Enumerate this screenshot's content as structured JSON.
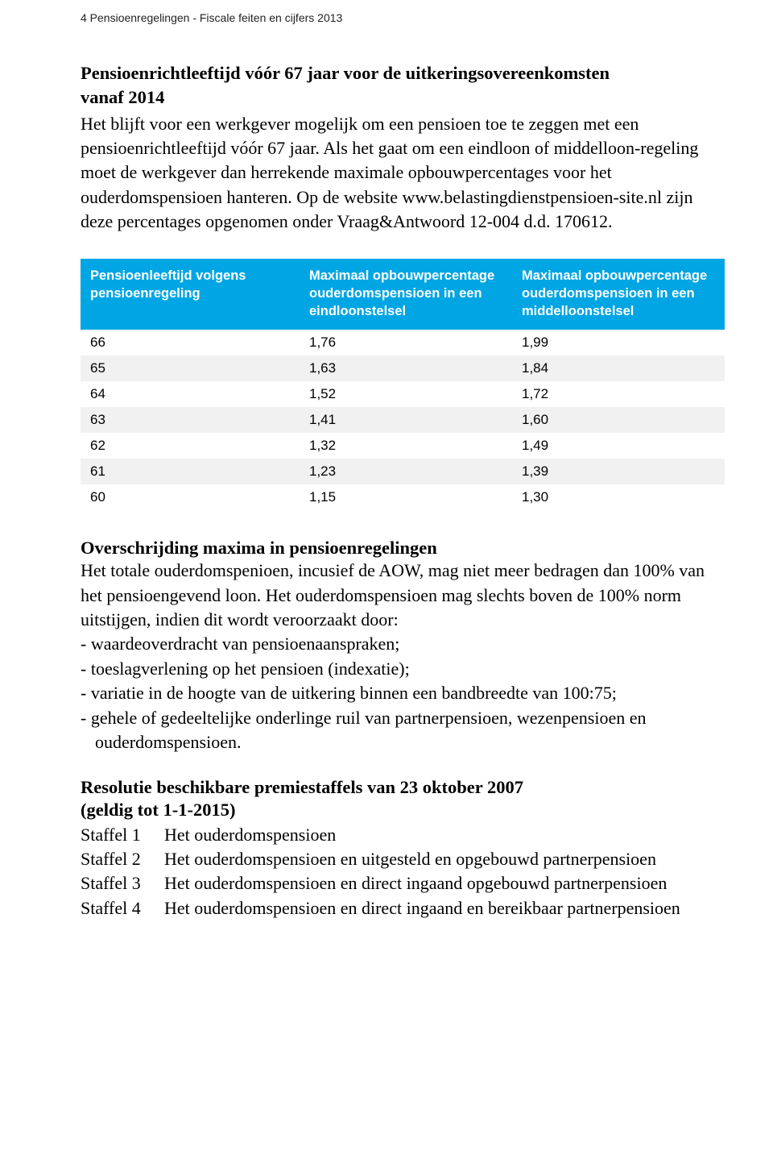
{
  "header": {
    "running": "4  Pensioenregelingen - Fiscale feiten en cijfers 2013"
  },
  "section1": {
    "title_line1": "Pensioenrichtleeftijd vóór 67 jaar voor de  uitkeringsovereenkomsten",
    "title_line2": "vanaf 2014",
    "para": "Het blijft voor een werkgever mogelijk om een pensioen toe te zeggen met een pensioenrichtleeftijd vóór 67 jaar. Als het gaat om een eindloon of middelloon-regeling moet de werkgever dan herrekende maximale opbouwpercentages voor het ouderdomspensioen hanteren. Op de website www.belastingdienstpensioen-site.nl zijn deze percentages opgenomen onder Vraag&Antwoord 12-004 d.d. 170612."
  },
  "table": {
    "columns": [
      "Pensioenleeftijd volgens pensioenregeling",
      "Maximaal opbouwpercentage ouderdomspensioen in een eindloonstelsel",
      "Maximaal opbouwpercentage ouderdomspensioen in een middelloonstelsel"
    ],
    "rows": [
      [
        "66",
        "1,76",
        "1,99"
      ],
      [
        "65",
        "1,63",
        "1,84"
      ],
      [
        "64",
        "1,52",
        "1,72"
      ],
      [
        "63",
        "1,41",
        "1,60"
      ],
      [
        "62",
        "1,32",
        "1,49"
      ],
      [
        "61",
        "1,23",
        "1,39"
      ],
      [
        "60",
        "1,15",
        "1,30"
      ]
    ],
    "header_bg": "#00a5e3",
    "header_fg": "#ffffff",
    "row_alt_bg": "#f1f1f1",
    "row_bg": "#ffffff"
  },
  "section2": {
    "title": "Overschrijding maxima in pensioenregelingen",
    "para": "Het totale ouderdomspenioen, incusief de AOW, mag niet meer bedragen dan 100% van het pensioengevend loon. Het ouderdomspensioen mag slechts boven de 100% norm uitstijgen, indien dit wordt veroorzaakt door:",
    "items": [
      "- waardeoverdracht van pensioenaanspraken;",
      "- toeslagverlening op het pensioen (indexatie);",
      "- variatie in de hoogte van de uitkering binnen een bandbreedte van 100:75;",
      "- gehele of gedeeltelijke onderlinge ruil van partnerpensioen, wezenpensioen en ouderdomspensioen."
    ]
  },
  "section3": {
    "title_line1": "Resolutie beschikbare premiestaffels van 23 oktober 2007",
    "title_line2": "(geldig tot 1-1-2015)",
    "staffels": [
      {
        "label": "Staffel 1",
        "text": "Het ouderdomspensioen"
      },
      {
        "label": "Staffel 2",
        "text": "Het ouderdomspensioen en uitgesteld en opgebouwd partnerpensioen"
      },
      {
        "label": "Staffel 3",
        "text": "Het ouderdomspensioen en direct ingaand opgebouwd partnerpensioen"
      },
      {
        "label": "Staffel 4",
        "text": "Het ouderdomspensioen en direct ingaand en bereikbaar partnerpensioen"
      }
    ]
  }
}
